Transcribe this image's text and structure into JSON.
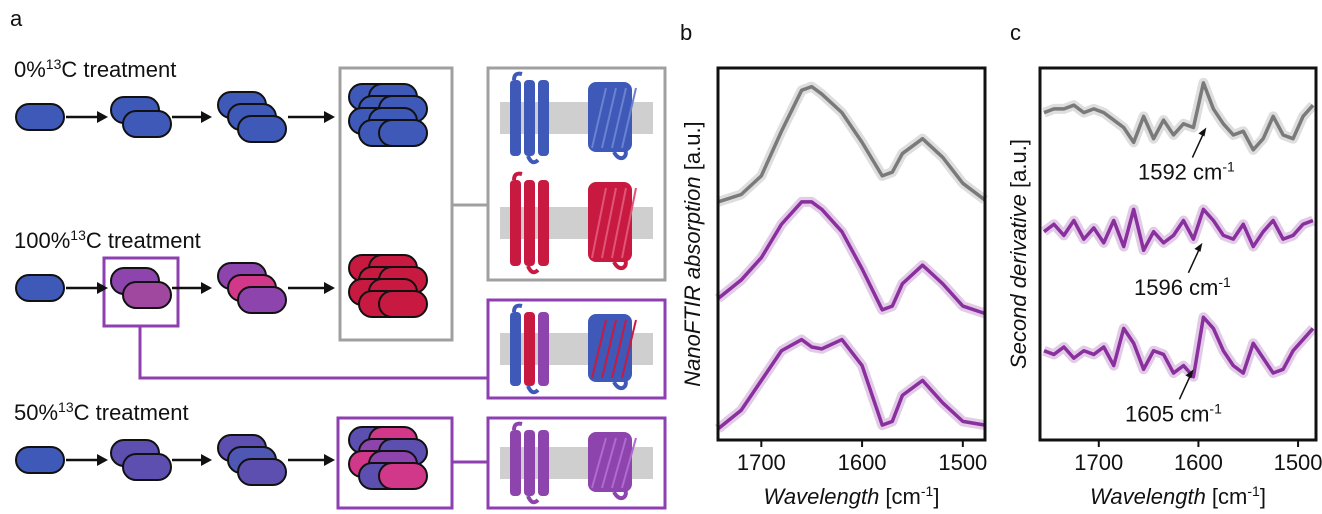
{
  "panel_labels": [
    "a",
    "b",
    "c"
  ],
  "schematic": {
    "rows": [
      {
        "percent": "0%",
        "isotope": "13",
        "label": "C treatment"
      },
      {
        "percent": "100%",
        "isotope": "13",
        "label": "C treatment"
      },
      {
        "percent": "50%",
        "isotope": "13",
        "label": "C treatment"
      }
    ]
  },
  "chart_data": [
    {
      "type": "line",
      "xlabel": [
        "Wavelength",
        " [cm",
        "-1",
        "]"
      ],
      "ylabel": [
        "NanoFTIR absorption",
        " [a.u.]"
      ],
      "x": [
        1743,
        1720,
        1700,
        1680,
        1660,
        1650,
        1640,
        1620,
        1600,
        1580,
        1570,
        1560,
        1540,
        1520,
        1500,
        1478
      ],
      "xlim": [
        1743,
        1478
      ],
      "xticks": [
        1700,
        1600,
        1500
      ],
      "ylim": [
        0,
        10
      ],
      "series": [
        {
          "color": "#7a7a7a",
          "values": [
            6.4,
            6.6,
            7.1,
            8.3,
            9.4,
            9.5,
            9.3,
            8.8,
            8.0,
            7.1,
            7.2,
            7.7,
            8.1,
            7.6,
            6.9,
            6.45
          ]
        },
        {
          "color": "#8a2f9e",
          "values": [
            3.8,
            4.3,
            4.9,
            5.8,
            6.4,
            6.4,
            6.2,
            5.6,
            4.6,
            3.5,
            3.6,
            4.2,
            4.7,
            4.2,
            3.6,
            3.4
          ]
        },
        {
          "color": "#8a2f9e",
          "values": [
            0.3,
            0.8,
            1.6,
            2.4,
            2.7,
            2.5,
            2.45,
            2.7,
            2.0,
            0.4,
            0.5,
            1.2,
            1.6,
            1.0,
            0.5,
            0.4
          ]
        }
      ]
    },
    {
      "type": "line",
      "xlabel": [
        "Wavelength",
        " [cm",
        "-1",
        "]"
      ],
      "ylabel": [
        "Second derivative",
        " [a.u.]"
      ],
      "x": [
        1755,
        1745,
        1735,
        1725,
        1715,
        1705,
        1695,
        1685,
        1675,
        1665,
        1655,
        1645,
        1635,
        1625,
        1615,
        1605,
        1595,
        1585,
        1575,
        1565,
        1555,
        1545,
        1535,
        1525,
        1515,
        1505,
        1495,
        1485
      ],
      "xlim": [
        1759,
        1482
      ],
      "xticks": [
        1700,
        1600,
        1500
      ],
      "ylim": [
        0,
        10
      ],
      "series": [
        {
          "color": "#7a7a7a",
          "values": [
            8.8,
            8.9,
            8.9,
            9.0,
            8.8,
            8.9,
            8.8,
            8.6,
            8.4,
            8.0,
            8.7,
            8.1,
            8.6,
            8.2,
            8.5,
            8.4,
            9.6,
            8.9,
            8.5,
            8.2,
            8.3,
            7.8,
            8.1,
            8.7,
            8.2,
            8.1,
            8.7,
            9.0
          ]
        },
        {
          "color": "#8a2f9e",
          "values": [
            5.6,
            5.8,
            5.5,
            5.9,
            5.4,
            5.7,
            5.3,
            5.9,
            5.2,
            6.2,
            5.1,
            5.6,
            5.3,
            5.5,
            5.9,
            5.4,
            6.2,
            5.9,
            5.5,
            5.4,
            5.8,
            5.2,
            5.6,
            5.9,
            5.4,
            5.5,
            5.8,
            5.9
          ]
        },
        {
          "color": "#8a2f9e",
          "values": [
            2.4,
            2.3,
            2.5,
            2.2,
            2.4,
            2.3,
            2.5,
            2.0,
            3.0,
            2.6,
            1.9,
            2.4,
            2.3,
            1.8,
            2.0,
            1.7,
            3.3,
            3.0,
            2.4,
            2.0,
            1.8,
            2.6,
            2.2,
            1.8,
            1.9,
            2.4,
            2.7,
            3.0
          ]
        }
      ],
      "annotations": [
        {
          "text": "1592 cm",
          "sup": "-1",
          "x": 1592,
          "y": 8.4
        },
        {
          "text": "1596 cm",
          "sup": "-1",
          "x": 1596,
          "y": 5.3
        },
        {
          "text": "1605 cm",
          "sup": "-1",
          "x": 1605,
          "y": 1.9
        }
      ]
    }
  ]
}
